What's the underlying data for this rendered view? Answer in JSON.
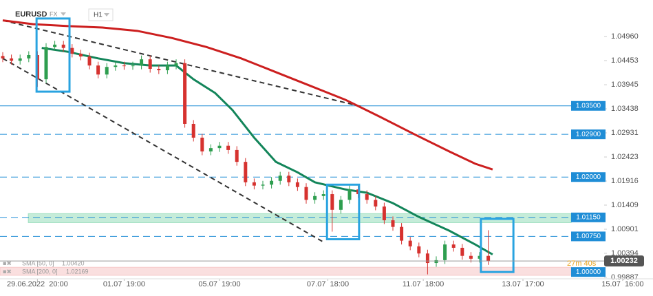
{
  "header": {
    "symbol": "EURUSD",
    "market": "FX",
    "interval": "H1"
  },
  "chart_data": {
    "type": "candlestick",
    "xlim": [
      -0.635,
      150
    ],
    "ylim": [
      0.99857,
      1.0573
    ],
    "xticks": [
      {
        "value": 8,
        "label": "29.06.2022  20:00"
      },
      {
        "value": 28,
        "label": "01.07  19:00"
      },
      {
        "value": 50,
        "label": "05.07  19:00"
      },
      {
        "value": 75,
        "label": "07.07  18:00"
      },
      {
        "value": 97,
        "label": "11.07  18:00"
      },
      {
        "value": 120,
        "label": "13.07  17:00"
      },
      {
        "value": 143,
        "label": "15.07  16:00"
      }
    ],
    "yticks": [
      {
        "value": 1.0496,
        "label": "1.04960"
      },
      1.04453,
      1.03945,
      1.03438,
      1.02931,
      1.02423,
      1.01916,
      1.01409,
      1.00901,
      1.00394,
      0.99887
    ],
    "up_color": "#2e9e4f",
    "down_color": "#d6322f",
    "x": [
      0,
      2,
      4,
      6,
      8,
      10,
      12,
      14,
      16,
      18,
      20,
      22,
      24,
      26,
      28,
      30,
      32,
      34,
      36,
      38,
      40,
      42,
      44,
      46,
      48,
      50,
      52,
      54,
      56,
      58,
      60,
      62,
      64,
      66,
      68,
      70,
      72,
      74,
      76,
      78,
      80,
      82,
      84,
      86,
      88,
      90,
      92,
      94,
      96,
      98,
      100,
      102,
      104,
      106,
      108,
      110,
      112
    ],
    "open": [
      1.0455,
      1.045,
      1.0445,
      1.045,
      1.0457,
      1.0406,
      1.0474,
      1.0479,
      1.0472,
      1.046,
      1.0454,
      1.0435,
      1.0416,
      1.0432,
      1.0435,
      1.0434,
      1.0435,
      1.0448,
      1.0428,
      1.0425,
      1.0435,
      1.044,
      1.0312,
      1.0283,
      1.0254,
      1.0261,
      1.0266,
      1.0257,
      1.0232,
      1.0189,
      1.0182,
      1.0184,
      1.0192,
      1.0203,
      1.0189,
      1.0179,
      1.0152,
      1.016,
      1.0164,
      1.0131,
      1.0152,
      1.0174,
      1.0164,
      1.0152,
      1.0138,
      1.0109,
      1.0095,
      1.0066,
      1.0054,
      1.0039,
      1.0019,
      1.0025,
      1.0058,
      1.0051,
      1.0034,
      1.0028,
      1.0034
    ],
    "high": [
      1.0463,
      1.0458,
      1.0458,
      1.0465,
      1.0465,
      1.0482,
      1.0487,
      1.0487,
      1.048,
      1.0468,
      1.0462,
      1.0443,
      1.044,
      1.0443,
      1.0443,
      1.0443,
      1.0456,
      1.0456,
      1.0436,
      1.0443,
      1.0448,
      1.0448,
      1.032,
      1.0291,
      1.0269,
      1.0274,
      1.0274,
      1.0265,
      1.024,
      1.0197,
      1.0192,
      1.02,
      1.0211,
      1.0211,
      1.0197,
      1.0187,
      1.0168,
      1.0172,
      1.0172,
      1.016,
      1.0182,
      1.0182,
      1.0172,
      1.016,
      1.0146,
      1.0117,
      1.0103,
      1.0074,
      1.0062,
      1.0047,
      1.0033,
      1.0066,
      1.0066,
      1.0059,
      1.0042,
      1.0042,
      1.0088
    ],
    "low": [
      1.0442,
      1.0437,
      1.0437,
      1.0442,
      1.039,
      1.0398,
      1.0466,
      1.0464,
      1.0452,
      1.0446,
      1.0427,
      1.0408,
      1.0408,
      1.0424,
      1.0426,
      1.0426,
      1.0427,
      1.042,
      1.0417,
      1.0417,
      1.0427,
      1.0304,
      1.0275,
      1.0246,
      1.0246,
      1.0253,
      1.0249,
      1.0224,
      1.0181,
      1.0174,
      1.0174,
      1.0176,
      1.0184,
      1.0181,
      1.0171,
      1.0144,
      1.0144,
      1.0152,
      1.0085,
      1.0123,
      1.0144,
      1.0156,
      1.0144,
      1.013,
      1.0101,
      1.0087,
      1.0058,
      1.0046,
      1.0031,
      0.9995,
      1.0011,
      1.0017,
      1.0043,
      1.0026,
      1.002,
      1.002,
      1.0015
    ],
    "close": [
      1.045,
      1.0445,
      1.045,
      1.0457,
      1.0406,
      1.0474,
      1.0479,
      1.0472,
      1.046,
      1.0454,
      1.0435,
      1.0416,
      1.0432,
      1.0435,
      1.0434,
      1.0435,
      1.0448,
      1.0428,
      1.0425,
      1.0435,
      1.044,
      1.0312,
      1.0283,
      1.0254,
      1.0261,
      1.0266,
      1.0257,
      1.0232,
      1.0189,
      1.0182,
      1.0184,
      1.0192,
      1.0203,
      1.0189,
      1.0179,
      1.0152,
      1.016,
      1.0164,
      1.0131,
      1.0152,
      1.0174,
      1.0164,
      1.0152,
      1.0138,
      1.0109,
      1.0095,
      1.0066,
      1.0054,
      1.0039,
      1.0019,
      1.0025,
      1.0058,
      1.0051,
      1.0034,
      1.0028,
      1.0034,
      1.0023
    ],
    "series": [
      {
        "name": "SMA [50, 0]",
        "last": {
          "value": 1.0042,
          "label": "1.00420"
        },
        "color": "#13855a",
        "x": [
          9,
          15,
          22,
          28,
          34,
          40,
          44,
          49,
          53,
          58,
          63,
          68,
          72,
          79,
          84,
          90,
          96,
          103,
          109,
          113
        ],
        "values": [
          1.0472,
          1.0464,
          1.045,
          1.044,
          1.0435,
          1.0435,
          1.0406,
          1.0377,
          1.0341,
          1.0283,
          1.0232,
          1.021,
          1.0189,
          1.0174,
          1.0167,
          1.0145,
          1.0116,
          1.0087,
          1.0058,
          1.0037
        ]
      },
      {
        "name": "SMA [200, 0]",
        "last": {
          "value": 1.02169,
          "label": "1.02169"
        },
        "color": "#cc1f1f",
        "x": [
          0,
          7,
          15,
          23,
          31,
          39,
          47,
          55,
          63,
          71,
          79,
          87,
          95,
          103,
          109,
          113
        ],
        "values": [
          1.053,
          1.0522,
          1.0518,
          1.0515,
          1.0508,
          1.0493,
          1.0474,
          1.045,
          1.0421,
          1.0392,
          1.0363,
          1.0327,
          1.029,
          1.0254,
          1.0228,
          1.0216
        ]
      }
    ],
    "levels": [
      {
        "value": 1.035,
        "label": "1.03500",
        "style": "solid"
      },
      {
        "value": 1.029,
        "label": "1.02900",
        "style": "dashed"
      },
      {
        "value": 1.02,
        "label": "1.02000",
        "style": "dashed"
      },
      {
        "value": 1.0115,
        "label": "1.01150",
        "style": "dashed"
      },
      {
        "value": 1.0075,
        "label": "1.00750",
        "style": "dashed"
      },
      {
        "value": 1,
        "label": "1.00000",
        "style": "none"
      }
    ],
    "level_color": "#1f8dd6",
    "zones": [
      {
        "x0": 5.9,
        "y": [
          1.0104,
          1.0123
        ],
        "color": "#9fe0c0"
      },
      {
        "x0": -0.635,
        "y": [
          0.9993,
          1.001
        ],
        "color": "#f7c9c9"
      }
    ],
    "trendlines": [
      {
        "x": [
          0,
          83
        ],
        "y": [
          1.053,
          1.0348
        ]
      },
      {
        "x": [
          0,
          74
        ],
        "y": [
          1.045,
          1.0063
        ]
      }
    ],
    "boxes": [
      {
        "x": [
          7.8,
          15.4
        ],
        "y": [
          1.038,
          1.0534
        ]
      },
      {
        "x": [
          74.8,
          82.2
        ],
        "y": [
          1.0069,
          1.0184
        ]
      },
      {
        "x": [
          110.3,
          117.8
        ],
        "y": [
          1.0,
          1.0112
        ]
      }
    ],
    "last_price": 1.00232,
    "timer": "27m 40s"
  }
}
